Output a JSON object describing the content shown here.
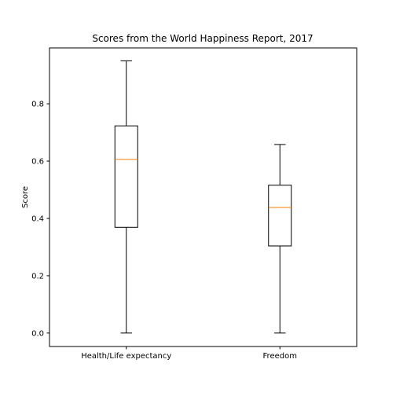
{
  "chart_data": {
    "type": "box",
    "title": "Scores from the World Happiness Report, 2017",
    "xlabel": "",
    "ylabel": "Score",
    "ylim": [
      -0.047,
      0.995
    ],
    "yticks": [
      0.0,
      0.2,
      0.4,
      0.6,
      0.8
    ],
    "ytick_labels": [
      "0.0",
      "0.2",
      "0.4",
      "0.6",
      "0.8"
    ],
    "grid": false,
    "categories": [
      "Health/Life expectancy",
      "Freedom"
    ],
    "boxes": [
      {
        "category": "Health/Life expectancy",
        "whisker_low": 0.0,
        "q1": 0.369,
        "median": 0.606,
        "q3": 0.723,
        "whisker_high": 0.95
      },
      {
        "category": "Freedom",
        "whisker_low": 0.0,
        "q1": 0.304,
        "median": 0.438,
        "q3": 0.516,
        "whisker_high": 0.658
      }
    ],
    "colors": {
      "box_edge": "#000000",
      "median_line": "#ff7f0e",
      "axes": "#000000",
      "background": "#ffffff"
    }
  }
}
